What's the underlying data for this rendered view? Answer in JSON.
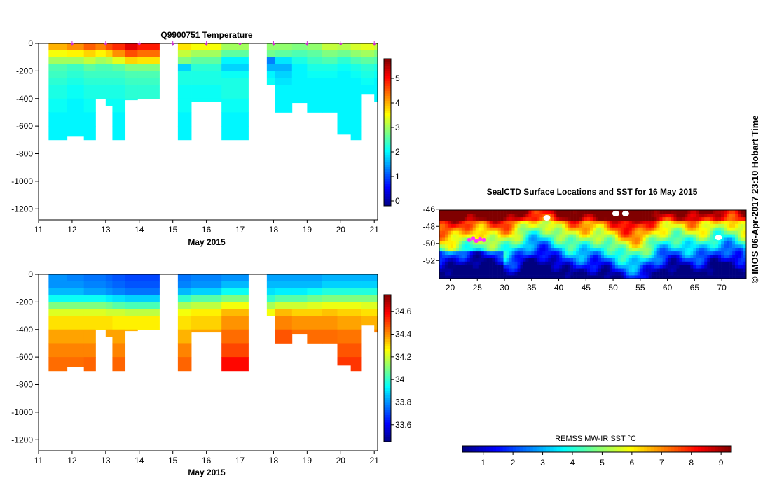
{
  "credit": "© IMOS 06-Apr-2017 23:10 Hobart Time",
  "colors": {
    "background": "#ffffff",
    "axis": "#000000",
    "marker": "#cc33cc"
  },
  "chart_data": [
    {
      "name": "temperature-section",
      "type": "heatmap",
      "title": "Q9900751  Temperature",
      "xlabel": "May 2015",
      "ylabel": "",
      "xlim": [
        11,
        21.1
      ],
      "ylim": [
        -1280,
        0
      ],
      "x_ticks": [
        "11",
        "12",
        "13",
        "14",
        "15",
        "16",
        "17",
        "18",
        "19",
        "20",
        "21"
      ],
      "y_ticks": [
        "0",
        "-200",
        "-400",
        "-600",
        "-800",
        "-1000",
        "-1200"
      ],
      "profile_markers_day": [
        12.0,
        13.0,
        14.0,
        15.0,
        16.0,
        17.0,
        18.0,
        19.0,
        20.0,
        21.0
      ],
      "colorbar": {
        "min": -0.2,
        "max": 5.8,
        "ticks": [
          "0",
          "1",
          "2",
          "3",
          "4",
          "5"
        ],
        "tick_values": [
          0,
          1,
          2,
          3,
          4,
          5
        ]
      },
      "depth_levels": [
        0,
        -50,
        -100,
        -150,
        -200,
        -250,
        -300,
        -400,
        -500,
        -600,
        -700
      ],
      "profiles": [
        {
          "start": 11.3,
          "end": 11.85,
          "max_depth": -700,
          "values": [
            4.0,
            3.5,
            3.0,
            2.5,
            2.4,
            2.3,
            2.2,
            2.1,
            2.0,
            2.0
          ]
        },
        {
          "start": 11.85,
          "end": 12.35,
          "max_depth": -670,
          "values": [
            4.2,
            3.6,
            3.0,
            2.4,
            2.3,
            2.2,
            2.1,
            2.0,
            2.0,
            2.0
          ]
        },
        {
          "start": 12.35,
          "end": 12.7,
          "max_depth": -700,
          "values": [
            4.5,
            3.8,
            3.2,
            2.6,
            2.4,
            2.3,
            2.2,
            2.1,
            2.0,
            2.0
          ]
        },
        {
          "start": 12.7,
          "end": 13.0,
          "max_depth": -400,
          "values": [
            4.3,
            3.6,
            3.0,
            2.5,
            2.4,
            2.3,
            2.2,
            2.1,
            2.0,
            2.0
          ]
        },
        {
          "start": 13.0,
          "end": 13.2,
          "max_depth": -450,
          "values": [
            4.6,
            3.8,
            3.1,
            2.5,
            2.4,
            2.3,
            2.2,
            2.1,
            2.0,
            2.0
          ]
        },
        {
          "start": 13.2,
          "end": 13.58,
          "max_depth": -700,
          "values": [
            4.8,
            4.2,
            3.4,
            2.6,
            2.4,
            2.3,
            2.2,
            2.1,
            2.0,
            2.0
          ]
        },
        {
          "start": 13.58,
          "end": 13.95,
          "max_depth": -410,
          "values": [
            5.2,
            4.6,
            3.8,
            2.8,
            2.5,
            2.4,
            2.3,
            2.2,
            2.1,
            2.0
          ]
        },
        {
          "start": 13.95,
          "end": 14.6,
          "max_depth": -400,
          "values": [
            4.9,
            4.4,
            3.7,
            2.8,
            2.5,
            2.4,
            2.3,
            2.2,
            2.1,
            2.0
          ]
        },
        {
          "start": 15.15,
          "end": 15.55,
          "max_depth": -700,
          "values": [
            3.7,
            3.2,
            2.8,
            1.8,
            2.2,
            2.2,
            2.1,
            2.1,
            2.0,
            2.0
          ]
        },
        {
          "start": 15.55,
          "end": 16.45,
          "max_depth": -420,
          "values": [
            3.5,
            3.0,
            2.6,
            2.3,
            2.2,
            2.2,
            2.1,
            2.1,
            2.0,
            2.0
          ]
        },
        {
          "start": 16.45,
          "end": 17.25,
          "max_depth": -700,
          "values": [
            3.0,
            2.6,
            2.0,
            1.8,
            2.1,
            2.2,
            2.2,
            2.1,
            2.0,
            2.0
          ]
        },
        {
          "start": 17.8,
          "end": 18.05,
          "max_depth": -300,
          "values": [
            2.9,
            2.7,
            1.3,
            1.6,
            2.0,
            2.1,
            2.0,
            2.0,
            2.0,
            2.0
          ]
        },
        {
          "start": 18.05,
          "end": 18.55,
          "max_depth": -500,
          "values": [
            2.9,
            2.6,
            1.9,
            1.6,
            1.8,
            1.9,
            2.0,
            2.0,
            2.0,
            2.0
          ]
        },
        {
          "start": 18.55,
          "end": 19.0,
          "max_depth": -430,
          "values": [
            2.8,
            2.5,
            2.2,
            2.0,
            2.0,
            2.0,
            2.0,
            2.0,
            2.0,
            2.0
          ]
        },
        {
          "start": 19.0,
          "end": 19.45,
          "max_depth": -500,
          "values": [
            2.9,
            2.6,
            2.4,
            2.2,
            2.1,
            2.0,
            2.0,
            2.0,
            2.0,
            2.0
          ]
        },
        {
          "start": 19.45,
          "end": 19.9,
          "max_depth": -500,
          "values": [
            3.2,
            2.8,
            2.5,
            2.2,
            2.1,
            2.0,
            2.0,
            2.0,
            2.0,
            2.0
          ]
        },
        {
          "start": 19.9,
          "end": 20.3,
          "max_depth": -660,
          "values": [
            3.1,
            2.7,
            2.3,
            2.1,
            2.0,
            2.0,
            2.0,
            2.0,
            2.0,
            2.0
          ]
        },
        {
          "start": 20.3,
          "end": 20.6,
          "max_depth": -700,
          "values": [
            3.3,
            2.9,
            2.5,
            2.2,
            2.1,
            2.0,
            2.0,
            2.0,
            2.0,
            2.0
          ]
        },
        {
          "start": 20.6,
          "end": 21.0,
          "max_depth": -370,
          "values": [
            3.4,
            3.0,
            2.6,
            2.3,
            2.2,
            2.1,
            2.0,
            2.0,
            2.0,
            2.0
          ]
        },
        {
          "start": 21.0,
          "end": 21.1,
          "max_depth": -420,
          "values": [
            3.2,
            2.8,
            2.5,
            2.2,
            2.1,
            2.0,
            2.0,
            2.0,
            2.0,
            2.0
          ]
        }
      ]
    },
    {
      "name": "salinity-section",
      "type": "heatmap",
      "title": "",
      "xlabel": "May 2015",
      "ylabel": "",
      "xlim": [
        11,
        21.1
      ],
      "ylim": [
        -1280,
        0
      ],
      "x_ticks": [
        "11",
        "12",
        "13",
        "14",
        "15",
        "16",
        "17",
        "18",
        "19",
        "20",
        "21"
      ],
      "y_ticks": [
        "0",
        "-200",
        "-400",
        "-600",
        "-800",
        "-1000",
        "-1200"
      ],
      "colorbar": {
        "min": 33.45,
        "max": 34.75,
        "ticks": [
          "33.6",
          "33.8",
          "34",
          "34.2",
          "34.4",
          "34.6"
        ],
        "tick_values": [
          33.6,
          33.8,
          34.0,
          34.2,
          34.4,
          34.6
        ]
      },
      "depth_levels": [
        0,
        -50,
        -100,
        -150,
        -200,
        -250,
        -300,
        -400,
        -500,
        -600,
        -700
      ],
      "profiles": [
        {
          "start": 11.3,
          "end": 11.85,
          "max_depth": -700,
          "values": [
            33.8,
            33.8,
            33.85,
            33.95,
            34.1,
            34.22,
            34.3,
            34.38,
            34.42,
            34.45
          ]
        },
        {
          "start": 11.85,
          "end": 12.35,
          "max_depth": -670,
          "values": [
            33.78,
            33.8,
            33.85,
            33.95,
            34.1,
            34.22,
            34.3,
            34.38,
            34.42,
            34.45
          ]
        },
        {
          "start": 12.35,
          "end": 12.7,
          "max_depth": -700,
          "values": [
            33.76,
            33.78,
            33.82,
            33.95,
            34.1,
            34.22,
            34.3,
            34.38,
            34.42,
            34.46
          ]
        },
        {
          "start": 12.7,
          "end": 13.0,
          "max_depth": -400,
          "values": [
            33.76,
            33.78,
            33.82,
            33.95,
            34.1,
            34.22,
            34.3,
            34.38,
            34.42,
            34.45
          ]
        },
        {
          "start": 13.0,
          "end": 13.2,
          "max_depth": -450,
          "values": [
            33.74,
            33.76,
            33.8,
            33.92,
            34.08,
            34.2,
            34.3,
            34.38,
            34.42,
            34.45
          ]
        },
        {
          "start": 13.2,
          "end": 13.58,
          "max_depth": -700,
          "values": [
            33.72,
            33.74,
            33.78,
            33.9,
            34.05,
            34.2,
            34.28,
            34.38,
            34.42,
            34.46
          ]
        },
        {
          "start": 13.58,
          "end": 13.95,
          "max_depth": -410,
          "values": [
            33.7,
            33.72,
            33.76,
            33.88,
            34.03,
            34.18,
            34.28,
            34.36,
            34.42,
            34.45
          ]
        },
        {
          "start": 13.95,
          "end": 14.6,
          "max_depth": -400,
          "values": [
            33.7,
            33.72,
            33.76,
            33.88,
            34.03,
            34.18,
            34.28,
            34.36,
            34.42,
            34.45
          ]
        },
        {
          "start": 15.15,
          "end": 15.55,
          "max_depth": -700,
          "values": [
            33.76,
            33.78,
            33.85,
            34.0,
            34.15,
            34.25,
            34.3,
            34.36,
            34.42,
            34.46
          ]
        },
        {
          "start": 15.55,
          "end": 16.45,
          "max_depth": -420,
          "values": [
            33.78,
            33.8,
            33.88,
            34.05,
            34.18,
            34.28,
            34.32,
            34.38,
            34.42,
            34.45
          ]
        },
        {
          "start": 16.45,
          "end": 17.25,
          "max_depth": -700,
          "values": [
            33.8,
            33.85,
            33.95,
            34.1,
            34.25,
            34.35,
            34.4,
            34.45,
            34.5,
            34.58
          ]
        },
        {
          "start": 17.8,
          "end": 18.05,
          "max_depth": -300,
          "values": [
            33.82,
            33.85,
            33.9,
            34.0,
            34.15,
            34.25,
            34.3,
            34.36,
            34.4,
            34.45
          ]
        },
        {
          "start": 18.05,
          "end": 18.55,
          "max_depth": -500,
          "values": [
            33.82,
            33.85,
            33.92,
            34.05,
            34.2,
            34.35,
            34.42,
            34.48,
            34.55,
            34.58
          ]
        },
        {
          "start": 18.55,
          "end": 19.0,
          "max_depth": -430,
          "values": [
            33.82,
            33.85,
            33.92,
            34.05,
            34.2,
            34.32,
            34.4,
            34.45,
            34.5,
            34.55
          ]
        },
        {
          "start": 19.0,
          "end": 19.45,
          "max_depth": -500,
          "values": [
            33.82,
            33.85,
            33.95,
            34.08,
            34.22,
            34.32,
            34.4,
            34.45,
            34.5,
            34.55
          ]
        },
        {
          "start": 19.45,
          "end": 19.9,
          "max_depth": -500,
          "values": [
            33.84,
            33.88,
            33.98,
            34.1,
            34.24,
            34.34,
            34.4,
            34.45,
            34.5,
            34.55
          ]
        },
        {
          "start": 19.9,
          "end": 20.3,
          "max_depth": -660,
          "values": [
            33.84,
            33.88,
            33.98,
            34.1,
            34.24,
            34.32,
            34.38,
            34.44,
            34.48,
            34.52
          ]
        },
        {
          "start": 20.3,
          "end": 20.6,
          "max_depth": -700,
          "values": [
            33.84,
            33.88,
            33.98,
            34.1,
            34.24,
            34.32,
            34.38,
            34.44,
            34.48,
            34.52
          ]
        },
        {
          "start": 20.6,
          "end": 21.0,
          "max_depth": -370,
          "values": [
            33.84,
            33.88,
            33.98,
            34.1,
            34.22,
            34.3,
            34.36,
            34.42,
            34.46,
            34.5
          ]
        },
        {
          "start": 21.0,
          "end": 21.1,
          "max_depth": -420,
          "values": [
            33.84,
            33.88,
            33.98,
            34.1,
            34.22,
            34.3,
            34.36,
            34.42,
            34.46,
            34.5
          ]
        }
      ]
    },
    {
      "name": "sst-map",
      "type": "heatmap",
      "title": "SealCTD Surface Locations and SST for 16 May 2015",
      "xlabel": "",
      "ylabel": "",
      "xlim": [
        18,
        74.5
      ],
      "ylim": [
        -54.1,
        -46.1
      ],
      "x_ticks": [
        "20",
        "25",
        "30",
        "35",
        "40",
        "45",
        "50",
        "55",
        "60",
        "65",
        "70"
      ],
      "x_tick_values": [
        20,
        25,
        30,
        35,
        40,
        45,
        50,
        55,
        60,
        65,
        70
      ],
      "y_ticks": [
        "-46",
        "-48",
        "-50",
        "-52"
      ],
      "y_tick_values": [
        -46,
        -48,
        -50,
        -52
      ],
      "colorbar": {
        "label": "REMSS MW-IR SST °C",
        "min": 0.3,
        "max": 9.35,
        "ticks": [
          "1",
          "2",
          "3",
          "4",
          "5",
          "6",
          "7",
          "8",
          "9"
        ],
        "tick_values": [
          1,
          2,
          3,
          4,
          5,
          6,
          7,
          8,
          9
        ]
      },
      "seal_locations": [
        [
          23.5,
          -49.6
        ],
        [
          24.2,
          -49.4
        ],
        [
          24.8,
          -49.7
        ],
        [
          25.5,
          -49.5
        ],
        [
          26.2,
          -49.6
        ]
      ],
      "no_data_patches": [
        [
          37.8,
          -47.0
        ],
        [
          50.5,
          -46.5
        ],
        [
          52.3,
          -46.5
        ],
        [
          69.4,
          -49.3
        ]
      ]
    }
  ]
}
